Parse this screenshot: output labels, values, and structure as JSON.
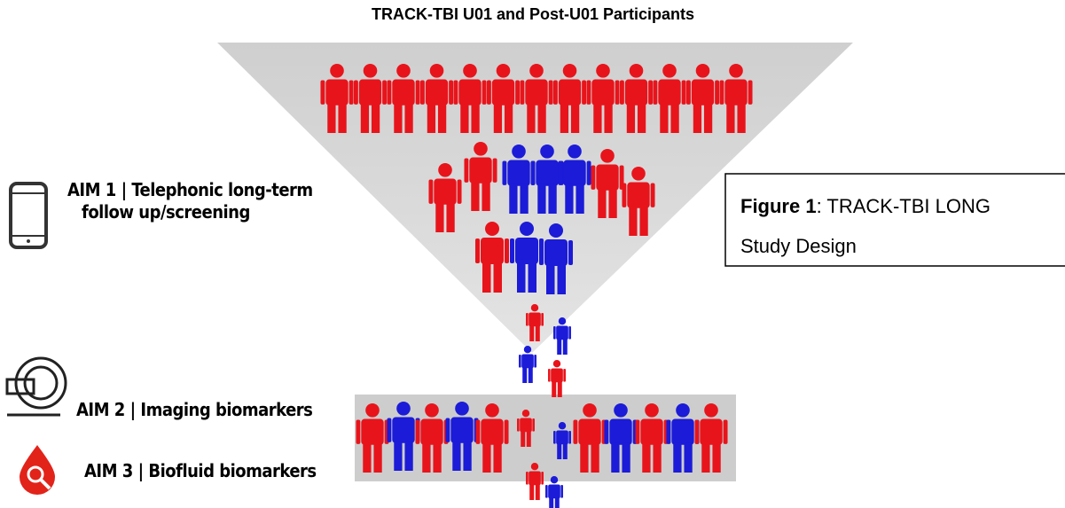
{
  "title": "TRACK-TBI U01 and Post-U01 Participants",
  "aims": [
    {
      "lines": [
        "AIM 1 | Telephonic long-term",
        "follow up/screening"
      ]
    },
    {
      "lines": [
        "AIM 2 | Imaging biomarkers"
      ]
    },
    {
      "lines": [
        "AIM 3 | Biofluid biomarkers"
      ]
    }
  ],
  "caption": {
    "label": "Figure 1",
    "text": ": TRACK-TBI LONG",
    "text2": "Study Design"
  }
}
